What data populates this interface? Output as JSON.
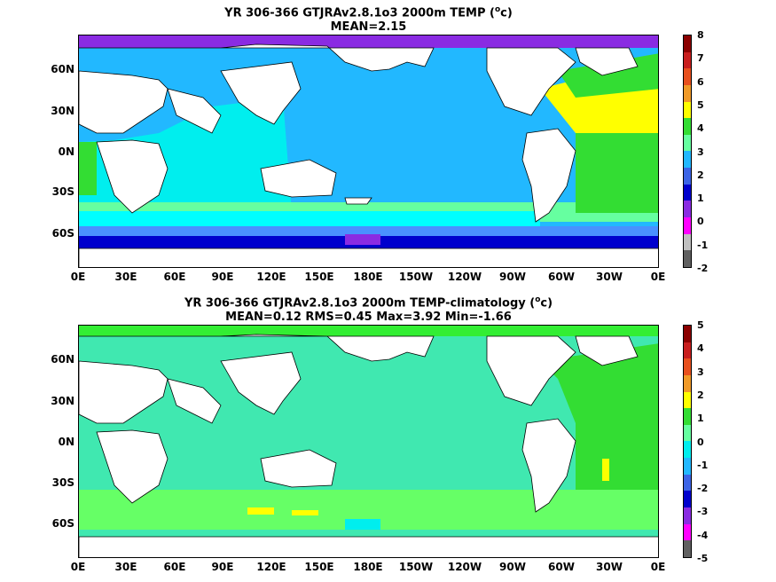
{
  "panels": [
    {
      "title_line1": "YR 306-366 GTJRAv2.8.1o3 2000m TEMP (",
      "title_unit_sup": "o",
      "title_unit_tail": "c)",
      "title_line2": "MEAN=2.15",
      "colorbar": {
        "labels": [
          "8",
          "7",
          "6",
          "5",
          "4",
          "3",
          "2",
          "1",
          "0",
          "-1",
          "-2"
        ],
        "colors": [
          "#8b0000",
          "#c81e1e",
          "#e8501e",
          "#f09a28",
          "#ffff00",
          "#33dd33",
          "#66ffa0",
          "#22b8ff",
          "#3c64e6",
          "#0000cd",
          "#8a2be2",
          "#ff00ff",
          "#c0c0c0",
          "#606060"
        ]
      },
      "field_colors": {
        "ocean_main": "#22b8ff",
        "indian": "#00eeee",
        "southern_band": "#00ffff",
        "south_band2": "#4a90ff",
        "antarctic": "#0000cd",
        "atlantic_n": "#ffff00",
        "atlantic_s": "#33dd33",
        "arctic": "#8a2be2"
      }
    },
    {
      "title_line1": "YR 306-366 GTJRAv2.8.1o3 2000m TEMP-climatology (",
      "title_unit_sup": "o",
      "title_unit_tail": "c)",
      "title_line2": "MEAN=0.12   RMS=0.45   Max=3.92   Min=-1.66",
      "colorbar": {
        "labels": [
          "5",
          "4",
          "3",
          "2",
          "1",
          "0",
          "-1",
          "-2",
          "-3",
          "-4",
          "-5"
        ],
        "colors": [
          "#8b0000",
          "#c81e1e",
          "#e8501e",
          "#f09a28",
          "#ffff00",
          "#33dd33",
          "#66ffa0",
          "#00eeee",
          "#22b8ff",
          "#3c64e6",
          "#0000cd",
          "#8a2be2",
          "#ff00ff",
          "#606060"
        ]
      },
      "field_colors": {
        "ocean_main": "#40e8b0",
        "atlantic_n": "#33dd33",
        "southern": "#66ff66",
        "arctic": "#33ee33",
        "warm_patch": "#ffff00"
      }
    }
  ],
  "y_axis_labels": [
    "60N",
    "30N",
    "0N",
    "30S",
    "60S"
  ],
  "x_axis_labels": [
    "0E",
    "30E",
    "60E",
    "90E",
    "120E",
    "150E",
    "180E",
    "150W",
    "120W",
    "90W",
    "60W",
    "30W",
    "0E"
  ]
}
